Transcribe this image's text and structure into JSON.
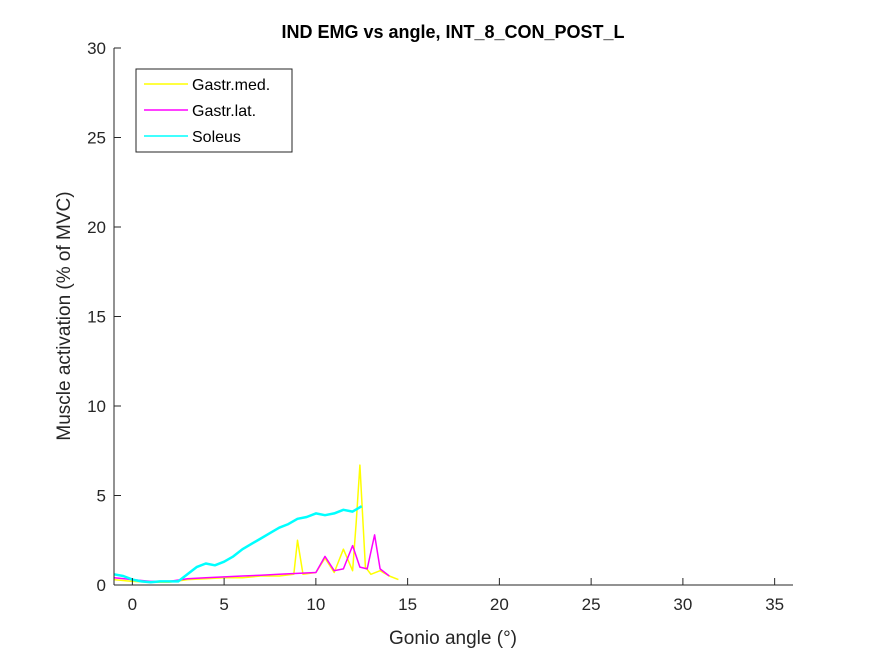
{
  "chart_data": {
    "type": "line",
    "title": "IND EMG vs angle, INT_8_CON_POST_L",
    "xlabel": "Gonio angle (°)",
    "ylabel": "Muscle activation (% of MVC)",
    "xlim": [
      -1,
      36
    ],
    "ylim": [
      0,
      30
    ],
    "xticks": [
      "0",
      "5",
      "10",
      "15",
      "20",
      "25",
      "30",
      "35"
    ],
    "xtick_values": [
      0,
      5,
      10,
      15,
      20,
      25,
      30,
      35
    ],
    "yticks": [
      "0",
      "5",
      "10",
      "15",
      "20",
      "25",
      "30"
    ],
    "ytick_values": [
      0,
      5,
      10,
      15,
      20,
      25,
      30
    ],
    "grid": false,
    "legend_position": "top-left",
    "series": [
      {
        "name": "Gastr.med.",
        "color": "#FFFF00",
        "x": [
          -1,
          0,
          1,
          2,
          3,
          4,
          5,
          6,
          7,
          8,
          8.8,
          9,
          9.3,
          10,
          10.5,
          11,
          11.5,
          12,
          12.2,
          12.4,
          12.7,
          13,
          13.5,
          14,
          14.5
        ],
        "y": [
          0.3,
          0.2,
          0.15,
          0.15,
          0.3,
          0.35,
          0.4,
          0.4,
          0.5,
          0.5,
          0.6,
          2.5,
          0.6,
          0.7,
          1.5,
          0.7,
          2.0,
          0.8,
          3.5,
          6.7,
          1.0,
          0.6,
          0.8,
          0.5,
          0.3
        ]
      },
      {
        "name": "Gastr.lat.",
        "color": "#FF00FF",
        "x": [
          -1,
          0,
          1,
          2,
          3,
          4,
          5,
          6,
          7,
          8,
          9,
          10,
          10.5,
          11,
          11.5,
          12,
          12.4,
          12.8,
          13.2,
          13.5,
          14
        ],
        "y": [
          0.4,
          0.3,
          0.2,
          0.2,
          0.35,
          0.4,
          0.45,
          0.5,
          0.55,
          0.6,
          0.65,
          0.7,
          1.6,
          0.8,
          0.9,
          2.2,
          1.0,
          0.9,
          2.8,
          0.9,
          0.5
        ]
      },
      {
        "name": "Soleus",
        "color": "#00FFFF",
        "x": [
          -1,
          -0.5,
          0,
          0.5,
          1,
          1.5,
          2,
          2.5,
          3,
          3.5,
          4,
          4.5,
          5,
          5.5,
          6,
          6.5,
          7,
          7.5,
          8,
          8.5,
          9,
          9.5,
          10,
          10.5,
          11,
          11.5,
          12,
          12.5
        ],
        "y": [
          0.6,
          0.5,
          0.3,
          0.2,
          0.15,
          0.2,
          0.2,
          0.2,
          0.6,
          1.0,
          1.2,
          1.1,
          1.3,
          1.6,
          2.0,
          2.3,
          2.6,
          2.9,
          3.2,
          3.4,
          3.7,
          3.8,
          4.0,
          3.9,
          4.0,
          4.2,
          4.1,
          4.4
        ]
      }
    ]
  }
}
